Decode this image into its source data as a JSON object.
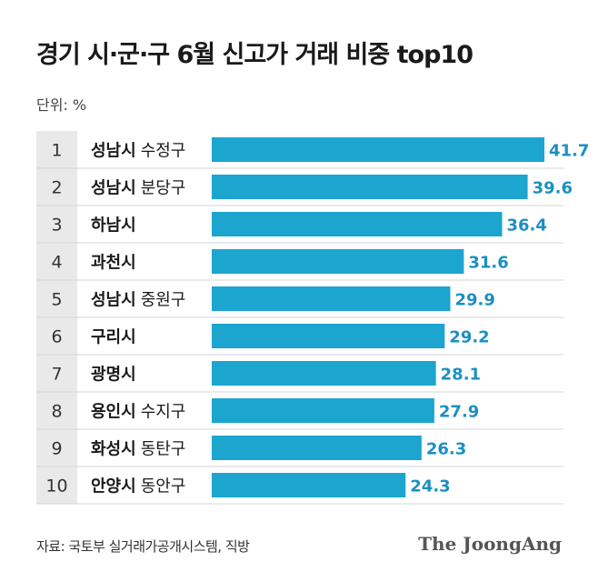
{
  "title": "경기 시·군·구 6월 신고가 거래 비중 top10",
  "unit_label": "단위: %",
  "source": "자료: 국토부 실거래가공개시스템, 직방",
  "brand": "The JoongAng",
  "colors": {
    "bar": "#1ba5cf",
    "value": "#1b8fc4",
    "rank_col": "#e9e9e9",
    "divider": "#d4d4d4"
  },
  "chart_data": {
    "type": "bar",
    "orientation": "horizontal",
    "xlim": [
      0,
      45
    ],
    "rows": [
      {
        "rank": "1",
        "city": "성남시",
        "district": "수정구",
        "value": 41.7
      },
      {
        "rank": "2",
        "city": "성남시",
        "district": "분당구",
        "value": 39.6
      },
      {
        "rank": "3",
        "city": "하남시",
        "district": "",
        "value": 36.4
      },
      {
        "rank": "4",
        "city": "과천시",
        "district": "",
        "value": 31.6
      },
      {
        "rank": "5",
        "city": "성남시",
        "district": "중원구",
        "value": 29.9
      },
      {
        "rank": "6",
        "city": "구리시",
        "district": "",
        "value": 29.2
      },
      {
        "rank": "7",
        "city": "광명시",
        "district": "",
        "value": 28.1
      },
      {
        "rank": "8",
        "city": "용인시",
        "district": "수지구",
        "value": 27.9
      },
      {
        "rank": "9",
        "city": "화성시",
        "district": "동탄구",
        "value": 26.3
      },
      {
        "rank": "10",
        "city": "안양시",
        "district": "동안구",
        "value": 24.3
      }
    ]
  }
}
